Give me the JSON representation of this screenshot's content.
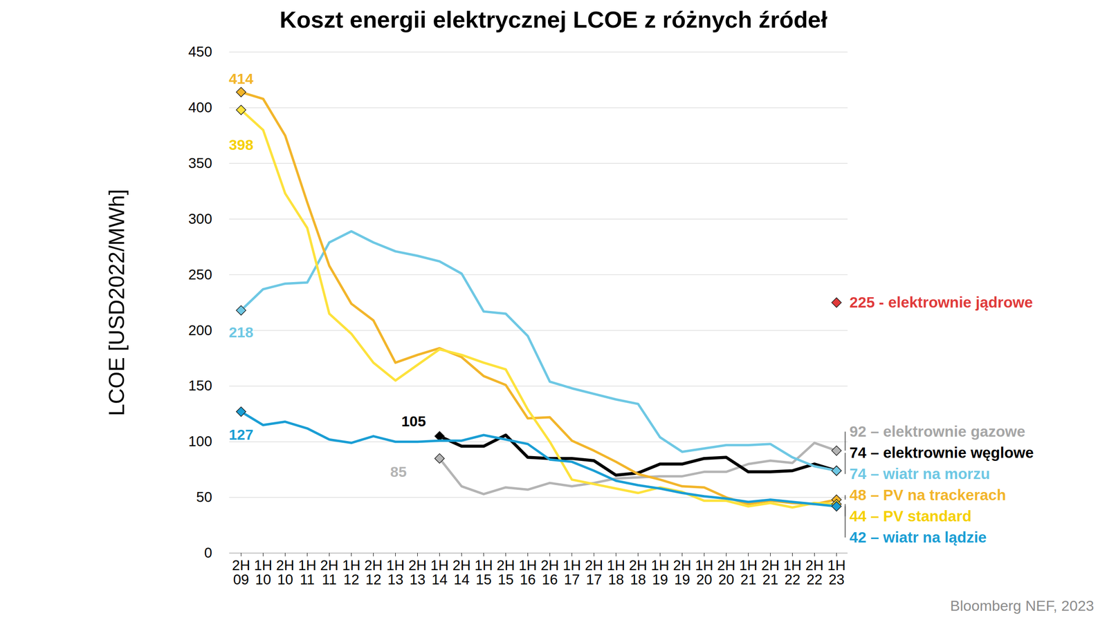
{
  "chart_data": {
    "type": "line",
    "title": "Koszt energii elektrycznej LCOE z różnych źródeł",
    "y_label": "LCOE [USD2022/MWh]",
    "source": "Bloomberg NEF, 2023",
    "categories": [
      "2H 09",
      "1H 10",
      "2H 10",
      "1H 11",
      "2H 11",
      "1H 12",
      "2H 12",
      "1H 13",
      "2H 13",
      "1H 14",
      "2H 14",
      "1H 15",
      "2H 15",
      "1H 16",
      "2H 16",
      "1H 17",
      "2H 17",
      "1H 18",
      "2H 18",
      "1H 19",
      "2H 19",
      "1H 20",
      "2H 20",
      "1H 21",
      "2H 21",
      "1H 22",
      "2H 22",
      "1H 23"
    ],
    "ylim": [
      0,
      450
    ],
    "yticks": [
      0,
      50,
      100,
      150,
      200,
      250,
      300,
      350,
      400,
      450
    ],
    "grid": true,
    "marker": "diamond",
    "series": [
      {
        "name": "elektrownie gazowe",
        "color": "#b4b4b4",
        "start_label": "85",
        "end_label": "92 – elektrownie gazowe",
        "values": [
          null,
          null,
          null,
          null,
          null,
          null,
          null,
          null,
          null,
          85,
          60,
          53,
          59,
          57,
          63,
          60,
          63,
          67,
          68,
          69,
          69,
          73,
          73,
          80,
          83,
          81,
          99,
          92
        ]
      },
      {
        "name": "elektrownie węglowe",
        "color": "#000000",
        "start_label": "105",
        "end_label": "74 – elektrownie węglowe",
        "values": [
          null,
          null,
          null,
          null,
          null,
          null,
          null,
          null,
          null,
          105,
          96,
          96,
          106,
          86,
          85,
          85,
          83,
          70,
          72,
          80,
          80,
          85,
          86,
          73,
          73,
          74,
          80,
          74
        ]
      },
      {
        "name": "wiatr na morzu",
        "color": "#6ec8e4",
        "start_label": "218",
        "end_label": "74 – wiatr na morzu",
        "values": [
          218,
          237,
          242,
          243,
          279,
          289,
          279,
          271,
          267,
          262,
          251,
          217,
          215,
          195,
          154,
          148,
          143,
          138,
          134,
          104,
          91,
          94,
          97,
          97,
          98,
          86,
          78,
          74
        ]
      },
      {
        "name": "PV na trackerach",
        "color": "#f2b52a",
        "start_label": "414",
        "end_label": "48 – PV na trackerach",
        "values": [
          414,
          408,
          375,
          315,
          258,
          224,
          209,
          171,
          178,
          184,
          176,
          159,
          151,
          121,
          122,
          101,
          92,
          82,
          71,
          66,
          60,
          59,
          50,
          44,
          47,
          45,
          44,
          48
        ]
      },
      {
        "name": "PV standard",
        "color": "#fde23c",
        "start_label": "398",
        "end_label": "44 – PV standard",
        "values": [
          398,
          380,
          323,
          292,
          215,
          197,
          171,
          155,
          169,
          183,
          178,
          171,
          165,
          129,
          100,
          66,
          62,
          58,
          54,
          59,
          55,
          47,
          47,
          42,
          45,
          41,
          45,
          44
        ]
      },
      {
        "name": "wiatr na lądzie",
        "color": "#1a9ed4",
        "start_label": "127",
        "end_label": "42 – wiatr na lądzie",
        "values": [
          127,
          115,
          118,
          112,
          102,
          99,
          105,
          100,
          100,
          101,
          101,
          106,
          102,
          98,
          84,
          82,
          74,
          65,
          61,
          58,
          54,
          51,
          49,
          46,
          48,
          46,
          44,
          42
        ]
      },
      {
        "name": "elektrownie jądrowe",
        "color": "#e03a3a",
        "type": "scatter",
        "end_label": "225 - elektrownie jądrowe",
        "values": [
          null,
          null,
          null,
          null,
          null,
          null,
          null,
          null,
          null,
          null,
          null,
          null,
          null,
          null,
          null,
          null,
          null,
          null,
          null,
          null,
          null,
          null,
          null,
          null,
          null,
          null,
          null,
          225
        ]
      }
    ]
  }
}
